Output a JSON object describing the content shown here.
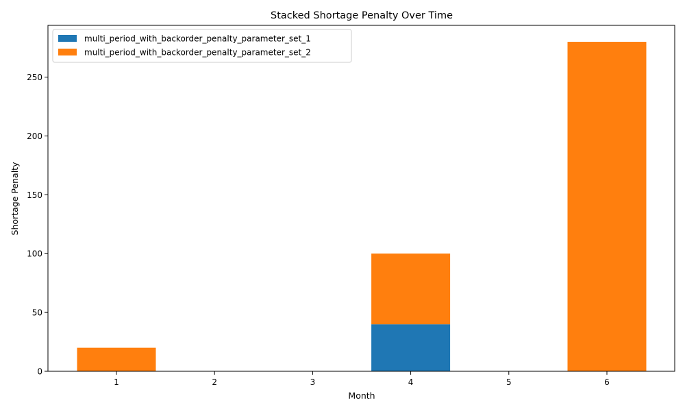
{
  "chart_data": {
    "type": "bar",
    "stacked": true,
    "title": "Stacked Shortage Penalty Over Time",
    "xlabel": "Month",
    "ylabel": "Shortage Penalty",
    "categories": [
      "1",
      "2",
      "3",
      "4",
      "5",
      "6"
    ],
    "series": [
      {
        "name": "multi_period_with_backorder_penalty_parameter_set_1",
        "color": "#1f77b4",
        "values": [
          0,
          0,
          0,
          40,
          0,
          0
        ]
      },
      {
        "name": "multi_period_with_backorder_penalty_parameter_set_2",
        "color": "#ff7f0e",
        "values": [
          20,
          0,
          0,
          60,
          0,
          280
        ]
      }
    ],
    "ylim": [
      0,
      294
    ],
    "yticks": [
      "0",
      "50",
      "100",
      "150",
      "200",
      "250"
    ],
    "grid": false,
    "legend_position": "top-left"
  }
}
